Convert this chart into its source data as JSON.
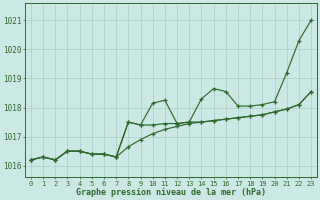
{
  "title": "Graphe pression niveau de la mer (hPa)",
  "x_labels": [
    "0",
    "1",
    "2",
    "3",
    "4",
    "5",
    "6",
    "7",
    "8",
    "9",
    "10",
    "11",
    "12",
    "13",
    "14",
    "15",
    "16",
    "17",
    "18",
    "19",
    "20",
    "21",
    "22",
    "23"
  ],
  "hours": [
    0,
    1,
    2,
    3,
    4,
    5,
    6,
    7,
    8,
    9,
    10,
    11,
    12,
    13,
    14,
    15,
    16,
    17,
    18,
    19,
    20,
    21,
    22,
    23
  ],
  "line_main": [
    1016.2,
    1016.3,
    1016.2,
    1016.5,
    1016.5,
    1016.4,
    1016.4,
    1016.3,
    1017.5,
    1017.4,
    1018.15,
    1018.25,
    1017.45,
    1017.5,
    1018.3,
    1018.65,
    1018.55,
    1018.05,
    1018.05,
    1018.1,
    1018.2,
    1019.2,
    1020.3,
    1021.0
  ],
  "line_trend": [
    1016.2,
    1016.3,
    1016.2,
    1016.5,
    1016.5,
    1016.4,
    1016.4,
    1016.3,
    1016.65,
    1016.9,
    1017.1,
    1017.25,
    1017.35,
    1017.45,
    1017.5,
    1017.55,
    1017.6,
    1017.65,
    1017.7,
    1017.75,
    1017.85,
    1017.95,
    1018.1,
    1018.55
  ],
  "line_mid": [
    1016.2,
    1016.3,
    1016.2,
    1016.5,
    1016.5,
    1016.4,
    1016.4,
    1016.3,
    1017.5,
    1017.4,
    1017.4,
    1017.45,
    1017.45,
    1017.5,
    1017.5,
    1017.55,
    1017.6,
    1017.65,
    1017.7,
    1017.75,
    1017.85,
    1017.95,
    1018.1,
    1018.55
  ],
  "line_color": "#2d6a2d",
  "bg_color": "#cce8e4",
  "grid_color": "#aaccc8",
  "ylim_min": 1015.6,
  "ylim_max": 1021.6,
  "yticks": [
    1016,
    1017,
    1018,
    1019,
    1020,
    1021
  ]
}
